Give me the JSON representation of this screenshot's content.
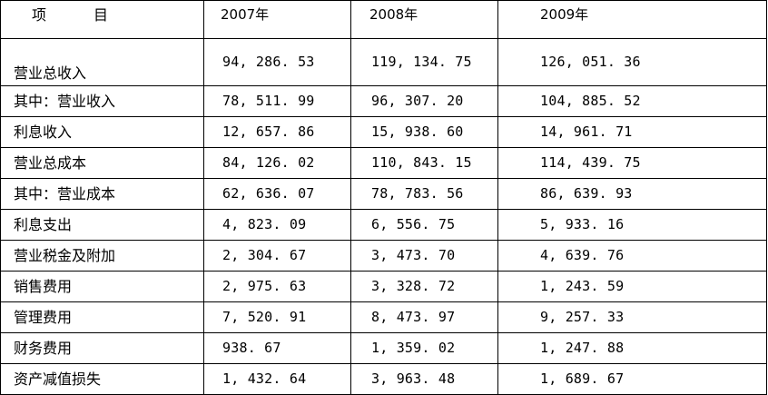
{
  "table": {
    "header": {
      "item_a": "项",
      "item_b": "目",
      "years": [
        "2007年",
        "2008年",
        "2009年"
      ]
    },
    "rows": [
      {
        "label": "营业总收入",
        "values": [
          "94, 286. 53",
          "119, 134. 75",
          "126, 051. 36"
        ]
      },
      {
        "label": "其中：营业收入",
        "values": [
          "78, 511. 99",
          "96, 307. 20",
          "104, 885. 52"
        ]
      },
      {
        "label": "利息收入",
        "values": [
          "12, 657. 86",
          "15, 938. 60",
          "14, 961. 71"
        ]
      },
      {
        "label": "营业总成本",
        "values": [
          "84, 126. 02",
          "110, 843. 15",
          "114, 439. 75"
        ]
      },
      {
        "label": "其中：营业成本",
        "values": [
          "62, 636. 07",
          "78, 783. 56",
          "86, 639. 93"
        ]
      },
      {
        "label": "利息支出",
        "values": [
          "4, 823. 09",
          "6, 556. 75",
          "5, 933. 16"
        ]
      },
      {
        "label": "营业税金及附加",
        "values": [
          "2, 304. 67",
          "3, 473. 70",
          "4, 639. 76"
        ]
      },
      {
        "label": "销售费用",
        "values": [
          "2, 975. 63",
          "3, 328. 72",
          "1, 243. 59"
        ]
      },
      {
        "label": "管理费用",
        "values": [
          "7, 520. 91",
          "8, 473. 97",
          "9, 257. 33"
        ]
      },
      {
        "label": "财务费用",
        "values": [
          "938. 67",
          "1, 359. 02",
          "1, 247. 88"
        ]
      },
      {
        "label": "资产减值损失",
        "values": [
          "1, 432. 64",
          "3, 963. 48",
          "1, 689. 67"
        ]
      }
    ]
  }
}
